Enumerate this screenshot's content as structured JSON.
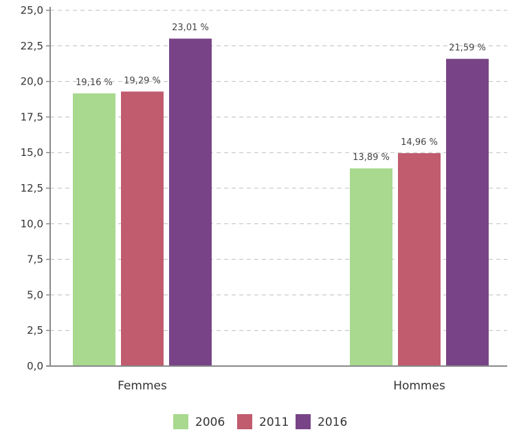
{
  "chart_data": {
    "type": "bar",
    "categories": [
      "Femmes",
      "Hommes"
    ],
    "series": [
      {
        "name": "2006",
        "color": "#a8d98e",
        "values": [
          19.16,
          13.89
        ],
        "labels": [
          "19,16 %",
          "13,89 %"
        ]
      },
      {
        "name": "2011",
        "color": "#c05c6e",
        "values": [
          19.29,
          14.96
        ],
        "labels": [
          "19,29 %",
          "14,96 %"
        ]
      },
      {
        "name": "2016",
        "color": "#784487",
        "values": [
          23.01,
          21.59
        ],
        "labels": [
          "23,01 %",
          "21,59 %"
        ]
      }
    ],
    "ylim": [
      0,
      25
    ],
    "yticks": [
      0,
      2.5,
      5,
      7.5,
      10,
      12.5,
      15,
      17.5,
      20,
      22.5,
      25
    ],
    "ytick_labels": [
      "0,0",
      "2,5",
      "5,0",
      "7,5",
      "10,0",
      "12,5",
      "15,0",
      "17,5",
      "20,0",
      "22,5",
      "25,0"
    ],
    "grid": true,
    "legend_position": "bottom-center",
    "title": "",
    "xlabel": "",
    "ylabel": ""
  }
}
